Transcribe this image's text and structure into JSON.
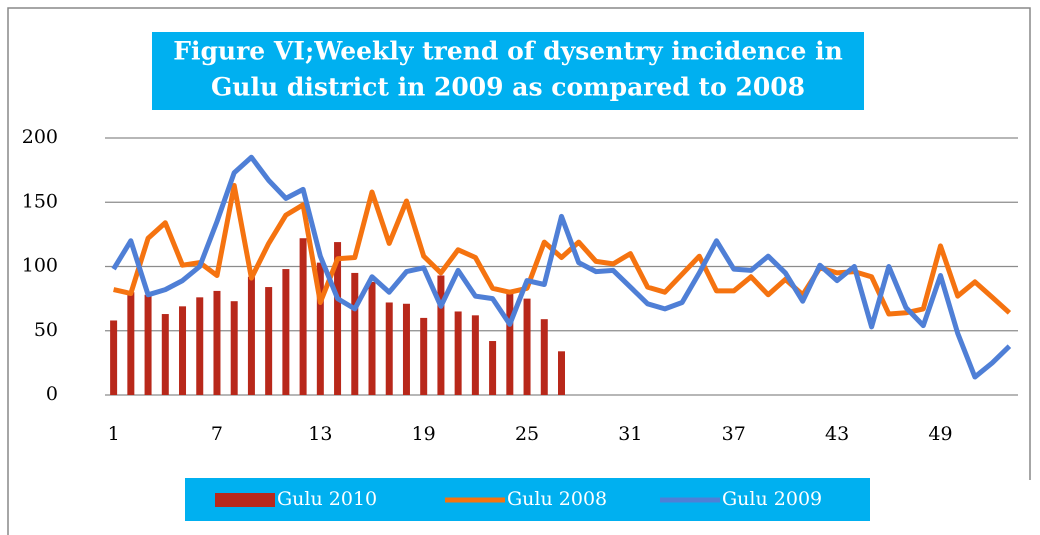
{
  "chart_data": {
    "type": "line",
    "title": [
      "Figure VI;Weekly trend of dysentry incidence in",
      "Gulu district in 2009 as compared to 2008"
    ],
    "categories": [
      "1",
      null,
      null,
      null,
      null,
      null,
      "7",
      null,
      null,
      null,
      null,
      null,
      "13",
      null,
      null,
      null,
      null,
      null,
      "19",
      null,
      null,
      null,
      null,
      null,
      "25",
      null,
      null,
      null,
      null,
      null,
      "31",
      null,
      null,
      null,
      null,
      null,
      "37",
      null,
      null,
      null,
      null,
      null,
      "43",
      null,
      null,
      null,
      null,
      null,
      "49",
      null,
      null,
      null,
      null
    ],
    "series": [
      {
        "name": "Gulu 2010",
        "kind": "bar",
        "color": "#b8281a",
        "values": [
          58,
          80,
          78,
          63,
          69,
          76,
          81,
          73,
          92,
          84,
          98,
          122,
          103,
          119,
          95,
          88,
          72,
          71,
          60,
          93,
          65,
          62,
          42,
          80,
          75,
          59,
          34,
          null,
          null,
          null,
          null,
          null,
          null,
          null,
          null,
          null,
          null,
          null,
          null,
          null,
          null,
          null,
          null,
          null,
          null,
          null,
          null,
          null,
          null,
          null,
          null,
          null,
          null
        ]
      },
      {
        "name": "Gulu 2008",
        "kind": "line",
        "color": "#f57310",
        "values": [
          82,
          79,
          122,
          134,
          101,
          103,
          93,
          163,
          91,
          118,
          140,
          148,
          72,
          106,
          107,
          158,
          118,
          151,
          108,
          95,
          113,
          107,
          83,
          80,
          83,
          119,
          107,
          119,
          104,
          102,
          110,
          84,
          80,
          94,
          108,
          81,
          81,
          92,
          78,
          90,
          78,
          99,
          95,
          96,
          92,
          63,
          64,
          67,
          116,
          77,
          88,
          76,
          64
        ]
      },
      {
        "name": "Gulu 2009",
        "kind": "line",
        "color": "#4f7fd6",
        "values": [
          98,
          120,
          78,
          82,
          89,
          100,
          135,
          173,
          185,
          167,
          153,
          160,
          108,
          75,
          67,
          92,
          80,
          96,
          99,
          69,
          97,
          77,
          75,
          55,
          89,
          86,
          139,
          103,
          96,
          97,
          84,
          71,
          67,
          72,
          95,
          120,
          98,
          97,
          108,
          95,
          73,
          101,
          89,
          100,
          53,
          100,
          68,
          54,
          93,
          48,
          14,
          25,
          38
        ]
      }
    ],
    "ylim": [
      0,
      200
    ],
    "yticks": [
      0,
      50,
      100,
      150,
      200
    ],
    "grid": true
  }
}
